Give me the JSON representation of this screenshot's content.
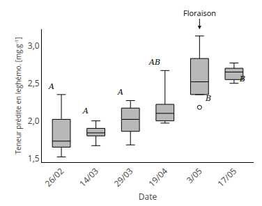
{
  "chart_data": {
    "type": "box",
    "xlabel": "Date",
    "ylabel": "Teneur prédite en leghémo. [mg.g⁻¹]",
    "categories": [
      "26/02",
      "14/03",
      "29/03",
      "19/04",
      "3/05",
      "17/05"
    ],
    "boxes": [
      {
        "whislo": 1.52,
        "q1": 1.65,
        "med": 1.73,
        "q3": 2.02,
        "whishi": 2.35,
        "fliers": []
      },
      {
        "whislo": 1.67,
        "q1": 1.8,
        "med": 1.84,
        "q3": 1.9,
        "whishi": 2.0,
        "fliers": []
      },
      {
        "whislo": 1.68,
        "q1": 1.86,
        "med": 2.02,
        "q3": 2.17,
        "whishi": 2.27,
        "fliers": []
      },
      {
        "whislo": 1.97,
        "q1": 2.0,
        "med": 2.1,
        "q3": 2.22,
        "whishi": 2.67,
        "fliers": []
      },
      {
        "whislo": 2.35,
        "q1": 2.35,
        "med": 2.52,
        "q3": 2.83,
        "whishi": 3.13,
        "fliers": [
          2.18
        ]
      },
      {
        "whislo": 2.5,
        "q1": 2.55,
        "med": 2.65,
        "q3": 2.7,
        "whishi": 2.77,
        "fliers": []
      }
    ],
    "color": "#b8b8b8",
    "ylim": [
      1.45,
      3.22
    ],
    "yticks": [
      {
        "value": 1.5,
        "label": "1,5"
      },
      {
        "value": 2.0,
        "label": "2,0"
      },
      {
        "value": 2.5,
        "label": "2,5"
      },
      {
        "value": 3.0,
        "label": "3,0"
      }
    ],
    "grid": false,
    "annotations": [
      {
        "text": "A",
        "x": "26/02",
        "y": 2.38
      },
      {
        "text": "A",
        "x": "14/03",
        "y": 2.05
      },
      {
        "text": "A",
        "x": "29/03",
        "y": 2.3
      },
      {
        "text": "AB",
        "x": "19/04",
        "y": 2.7
      },
      {
        "text": "B",
        "x": "3/05",
        "y": 2.22
      },
      {
        "text": "B",
        "x": "17/05",
        "y": 2.48
      },
      {
        "text": "Floraison",
        "x": "3/05"
      }
    ]
  }
}
